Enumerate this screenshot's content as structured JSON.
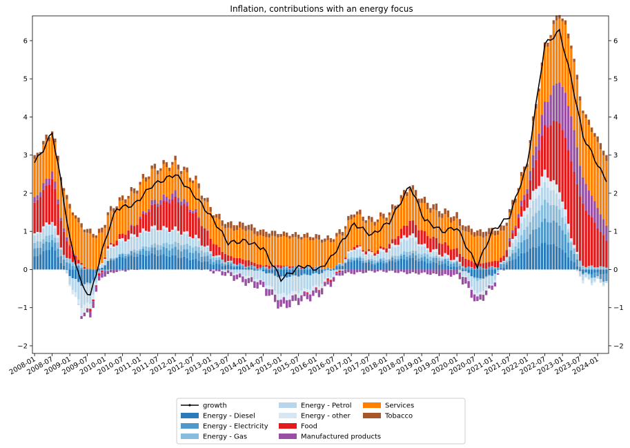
{
  "chart_data": {
    "type": "bar",
    "title": "Inflation, contributions with an energy focus",
    "xlabel": "",
    "ylabel": "",
    "ylim": [
      -2.2,
      6.65
    ],
    "yticks": [
      -2,
      -1,
      0,
      1,
      2,
      3,
      4,
      5,
      6
    ],
    "x_start": "2008-01",
    "x_end": "2024-04",
    "xticks": [
      "2008-01",
      "2008-07",
      "2009-01",
      "2009-07",
      "2010-01",
      "2010-07",
      "2011-01",
      "2011-07",
      "2012-01",
      "2012-07",
      "2013-01",
      "2013-07",
      "2014-01",
      "2014-07",
      "2015-01",
      "2015-07",
      "2016-01",
      "2016-07",
      "2017-01",
      "2017-07",
      "2018-01",
      "2018-07",
      "2019-01",
      "2019-07",
      "2020-01",
      "2020-07",
      "2021-01",
      "2021-07",
      "2022-01",
      "2022-07",
      "2023-01",
      "2023-07",
      "2024-01"
    ],
    "colors": {
      "Energy - Diesel": "#2b7bba",
      "Energy - Electricity": "#4f98c9",
      "Energy - Gas": "#87bcdc",
      "Energy - Petrol": "#b8d6ea",
      "Energy - other": "#d7e6f3",
      "Food": "#e31a1c",
      "Manufactured products": "#984ea3",
      "Services": "#ff7f00",
      "Tobacco": "#a65628",
      "growth": "#000000"
    },
    "legend": {
      "placement": "bottom-center",
      "entries": [
        "growth",
        "Energy - Diesel",
        "Energy - Electricity",
        "Energy - Gas",
        "Energy - Petrol",
        "Energy - other",
        "Food",
        "Manufactured products",
        "Services",
        "Tobacco"
      ]
    },
    "series_order": [
      "Energy - Diesel",
      "Energy - Electricity",
      "Energy - Gas",
      "Energy - Petrol",
      "Energy - other",
      "Food",
      "Manufactured products",
      "Services",
      "Tobacco"
    ],
    "keypoints": [
      {
        "t": 0,
        "Energy - Diesel": 0.35,
        "Energy - Electricity": 0.2,
        "Energy - Gas": 0.15,
        "Energy - Petrol": 0.2,
        "Energy - other": 0.05,
        "Food": 0.8,
        "Manufactured products": 0.15,
        "Services": 1.0,
        "Tobacco": 0.1,
        "growth": 2.8
      },
      {
        "t": 3,
        "Energy - Diesel": 0.45,
        "Energy - Electricity": 0.2,
        "Energy - Gas": 0.15,
        "Energy - Petrol": 0.25,
        "Energy - other": 0.05,
        "Food": 0.95,
        "Manufactured products": 0.15,
        "Services": 1.0,
        "Tobacco": 0.1,
        "growth": 3.15
      },
      {
        "t": 6,
        "Energy - Diesel": 0.6,
        "Energy - Electricity": 0.2,
        "Energy - Gas": 0.15,
        "Energy - Petrol": 0.3,
        "Energy - other": 0.05,
        "Food": 1.1,
        "Manufactured products": 0.2,
        "Services": 1.0,
        "Tobacco": 0.1,
        "growth": 3.6
      },
      {
        "t": 9,
        "Energy - Diesel": 0.2,
        "Energy - Electricity": 0.2,
        "Energy - Gas": 0.15,
        "Energy - Petrol": 0.05,
        "Energy - other": 0.05,
        "Food": 0.7,
        "Manufactured products": 0.1,
        "Services": 1.0,
        "Tobacco": 0.1,
        "growth": 2.3
      },
      {
        "t": 12,
        "Energy - Diesel": -0.15,
        "Energy - Electricity": 0.15,
        "Energy - Gas": 0.1,
        "Energy - Petrol": -0.2,
        "Energy - other": -0.05,
        "Food": 0.35,
        "Manufactured products": 0.05,
        "Services": 0.95,
        "Tobacco": 0.1,
        "growth": 0.8
      },
      {
        "t": 16,
        "Energy - Diesel": -0.4,
        "Energy - Electricity": 0.05,
        "Energy - Gas": 0.05,
        "Energy - Petrol": -0.55,
        "Energy - other": -0.2,
        "Food": 0.05,
        "Manufactured products": -0.05,
        "Services": 0.95,
        "Tobacco": 0.1,
        "growth": -0.4
      },
      {
        "t": 19,
        "Energy - Diesel": -0.35,
        "Energy - Electricity": 0.0,
        "Energy - Gas": -0.05,
        "Energy - Petrol": -0.5,
        "Energy - other": -0.15,
        "Food": -0.05,
        "Manufactured products": -0.15,
        "Services": 0.9,
        "Tobacco": 0.1,
        "growth": -0.7
      },
      {
        "t": 22,
        "Energy - Diesel": 0.0,
        "Energy - Electricity": -0.05,
        "Energy - Gas": -0.05,
        "Energy - Petrol": 0.05,
        "Energy - other": 0.0,
        "Food": -0.05,
        "Manufactured products": -0.15,
        "Services": 0.8,
        "Tobacco": 0.1,
        "growth": 0.2
      },
      {
        "t": 25,
        "Energy - Diesel": 0.2,
        "Energy - Electricity": 0.0,
        "Energy - Gas": 0.0,
        "Energy - Petrol": 0.25,
        "Energy - other": 0.05,
        "Food": 0.05,
        "Manufactured products": -0.1,
        "Services": 0.8,
        "Tobacco": 0.1,
        "growth": 1.0
      },
      {
        "t": 28,
        "Energy - Diesel": 0.3,
        "Energy - Electricity": 0.05,
        "Energy - Gas": 0.0,
        "Energy - Petrol": 0.3,
        "Energy - other": 0.05,
        "Food": 0.1,
        "Manufactured products": -0.05,
        "Services": 0.85,
        "Tobacco": 0.1,
        "growth": 1.6
      },
      {
        "t": 34,
        "Energy - Diesel": 0.35,
        "Energy - Electricity": 0.1,
        "Energy - Gas": 0.05,
        "Energy - Petrol": 0.35,
        "Energy - other": 0.05,
        "Food": 0.25,
        "Manufactured products": 0.0,
        "Services": 0.85,
        "Tobacco": 0.1,
        "growth": 1.7
      },
      {
        "t": 40,
        "Energy - Diesel": 0.4,
        "Energy - Electricity": 0.15,
        "Energy - Gas": 0.1,
        "Energy - Petrol": 0.4,
        "Energy - other": 0.05,
        "Food": 0.55,
        "Manufactured products": 0.1,
        "Services": 0.8,
        "Tobacco": 0.1,
        "growth": 2.2
      },
      {
        "t": 48,
        "Energy - Diesel": 0.35,
        "Energy - Electricity": 0.2,
        "Energy - Gas": 0.15,
        "Energy - Petrol": 0.3,
        "Energy - other": 0.05,
        "Food": 0.8,
        "Manufactured products": 0.15,
        "Services": 0.75,
        "Tobacco": 0.1,
        "growth": 2.5
      },
      {
        "t": 55,
        "Energy - Diesel": 0.25,
        "Energy - Electricity": 0.2,
        "Energy - Gas": 0.15,
        "Energy - Petrol": 0.2,
        "Energy - other": 0.05,
        "Food": 0.6,
        "Manufactured products": 0.05,
        "Services": 0.75,
        "Tobacco": 0.1,
        "growth": 1.9
      },
      {
        "t": 61,
        "Energy - Diesel": 0.15,
        "Energy - Electricity": 0.1,
        "Energy - Gas": 0.1,
        "Energy - Petrol": 0.05,
        "Energy - other": 0.0,
        "Food": 0.3,
        "Manufactured products": -0.05,
        "Services": 0.7,
        "Tobacco": 0.1,
        "growth": 1.3
      },
      {
        "t": 66,
        "Energy - Diesel": 0.1,
        "Energy - Electricity": 0.05,
        "Energy - Gas": 0.05,
        "Energy - Petrol": -0.05,
        "Energy - other": 0.0,
        "Food": 0.15,
        "Manufactured products": -0.1,
        "Services": 0.7,
        "Tobacco": 0.15,
        "growth": 0.7
      },
      {
        "t": 72,
        "Energy - Diesel": 0.05,
        "Energy - Electricity": 0.05,
        "Energy - Gas": 0.0,
        "Energy - Petrol": -0.15,
        "Energy - other": -0.05,
        "Food": 0.15,
        "Manufactured products": -0.15,
        "Services": 0.8,
        "Tobacco": 0.15,
        "growth": 0.75
      },
      {
        "t": 78,
        "Energy - Diesel": -0.05,
        "Energy - Electricity": 0.05,
        "Energy - Gas": 0.0,
        "Energy - Petrol": -0.25,
        "Energy - other": -0.05,
        "Food": 0.05,
        "Manufactured products": -0.15,
        "Services": 0.75,
        "Tobacco": 0.15,
        "growth": 0.55
      },
      {
        "t": 84,
        "Energy - Diesel": -0.2,
        "Energy - Electricity": 0.05,
        "Energy - Gas": 0.0,
        "Energy - Petrol": -0.45,
        "Energy - other": -0.15,
        "Food": 0.05,
        "Manufactured products": -0.2,
        "Services": 0.75,
        "Tobacco": 0.1,
        "growth": -0.25
      },
      {
        "t": 91,
        "Energy - Diesel": -0.15,
        "Energy - Electricity": 0.05,
        "Energy - Gas": 0.0,
        "Energy - Petrol": -0.4,
        "Energy - other": -0.1,
        "Food": 0.0,
        "Manufactured products": -0.15,
        "Services": 0.75,
        "Tobacco": 0.1,
        "growth": 0.1
      },
      {
        "t": 97,
        "Energy - Diesel": -0.1,
        "Energy - Electricity": 0.05,
        "Energy - Gas": 0.0,
        "Energy - Petrol": -0.3,
        "Energy - other": -0.1,
        "Food": 0.0,
        "Manufactured products": -0.15,
        "Services": 0.7,
        "Tobacco": 0.1,
        "growth": 0.0
      },
      {
        "t": 101,
        "Energy - Diesel": 0.0,
        "Energy - Electricity": 0.0,
        "Energy - Gas": 0.0,
        "Energy - Petrol": -0.15,
        "Energy - other": -0.05,
        "Food": -0.05,
        "Manufactured products": -0.1,
        "Services": 0.7,
        "Tobacco": 0.1,
        "growth": 0.3
      },
      {
        "t": 109,
        "Energy - Diesel": 0.25,
        "Energy - Electricity": 0.05,
        "Energy - Gas": 0.05,
        "Energy - Petrol": 0.2,
        "Energy - other": 0.05,
        "Food": 0.05,
        "Manufactured products": -0.1,
        "Services": 0.8,
        "Tobacco": 0.1,
        "growth": 1.2
      },
      {
        "t": 115,
        "Energy - Diesel": 0.15,
        "Energy - Electricity": 0.05,
        "Energy - Gas": 0.05,
        "Energy - Petrol": 0.1,
        "Energy - other": 0.05,
        "Food": 0.05,
        "Manufactured products": -0.05,
        "Services": 0.75,
        "Tobacco": 0.1,
        "growth": 0.9
      },
      {
        "t": 121,
        "Energy - Diesel": 0.2,
        "Energy - Electricity": 0.05,
        "Energy - Gas": 0.05,
        "Energy - Petrol": 0.2,
        "Energy - other": 0.05,
        "Food": 0.1,
        "Manufactured products": -0.05,
        "Services": 0.75,
        "Tobacco": 0.1,
        "growth": 1.25
      },
      {
        "t": 128,
        "Energy - Diesel": 0.3,
        "Energy - Electricity": 0.1,
        "Energy - Gas": 0.1,
        "Energy - Petrol": 0.35,
        "Energy - other": 0.1,
        "Food": 0.35,
        "Manufactured products": -0.1,
        "Services": 0.8,
        "Tobacco": 0.1,
        "growth": 2.2
      },
      {
        "t": 133,
        "Energy - Diesel": 0.2,
        "Energy - Electricity": 0.1,
        "Energy - Gas": 0.1,
        "Energy - Petrol": 0.15,
        "Energy - other": 0.05,
        "Food": 0.35,
        "Manufactured products": -0.1,
        "Services": 0.7,
        "Tobacco": 0.15,
        "growth": 1.3
      },
      {
        "t": 139,
        "Energy - Diesel": 0.15,
        "Energy - Electricity": 0.1,
        "Energy - Gas": 0.05,
        "Energy - Petrol": 0.05,
        "Energy - other": 0.05,
        "Food": 0.3,
        "Manufactured products": -0.15,
        "Services": 0.7,
        "Tobacco": 0.15,
        "growth": 1.0
      },
      {
        "t": 144,
        "Energy - Diesel": 0.05,
        "Energy - Electricity": 0.1,
        "Energy - Gas": 0.05,
        "Energy - Petrol": 0.0,
        "Energy - other": 0.05,
        "Food": 0.25,
        "Manufactured products": -0.15,
        "Services": 0.75,
        "Tobacco": 0.15,
        "growth": 1.1
      },
      {
        "t": 148,
        "Energy - Diesel": -0.1,
        "Energy - Electricity": 0.05,
        "Energy - Gas": 0.0,
        "Energy - Petrol": -0.2,
        "Energy - other": -0.05,
        "Food": 0.2,
        "Manufactured products": -0.2,
        "Services": 0.7,
        "Tobacco": 0.15,
        "growth": 0.5
      },
      {
        "t": 151,
        "Energy - Diesel": -0.25,
        "Energy - Electricity": 0.05,
        "Energy - Gas": -0.05,
        "Energy - Petrol": -0.35,
        "Energy - other": -0.1,
        "Food": 0.1,
        "Manufactured products": -0.15,
        "Services": 0.7,
        "Tobacco": 0.15,
        "growth": 0.1
      },
      {
        "t": 156,
        "Energy - Diesel": -0.15,
        "Energy - Electricity": 0.05,
        "Energy - Gas": 0.0,
        "Energy - Petrol": -0.2,
        "Energy - other": -0.05,
        "Food": 0.15,
        "Manufactured products": -0.1,
        "Services": 0.7,
        "Tobacco": 0.15,
        "growth": 1.0
      },
      {
        "t": 162,
        "Energy - Diesel": 0.2,
        "Energy - Electricity": 0.1,
        "Energy - Gas": 0.05,
        "Energy - Petrol": 0.15,
        "Energy - other": 0.05,
        "Food": 0.15,
        "Manufactured products": 0.05,
        "Services": 0.65,
        "Tobacco": 0.1,
        "growth": 1.4
      },
      {
        "t": 168,
        "Energy - Diesel": 0.5,
        "Energy - Electricity": 0.35,
        "Energy - Gas": 0.3,
        "Energy - Petrol": 0.35,
        "Energy - other": 0.2,
        "Food": 0.35,
        "Manufactured products": 0.15,
        "Services": 0.6,
        "Tobacco": 0.1,
        "growth": 2.75
      },
      {
        "t": 174,
        "Energy - Diesel": 0.7,
        "Energy - Electricity": 0.6,
        "Energy - Gas": 0.5,
        "Energy - Petrol": 0.45,
        "Energy - other": 0.3,
        "Food": 1.2,
        "Manufactured products": 0.6,
        "Services": 1.4,
        "Tobacco": 0.1,
        "growth": 5.9
      },
      {
        "t": 179,
        "Energy - Diesel": 0.6,
        "Energy - Electricity": 0.6,
        "Energy - Gas": 0.4,
        "Energy - Petrol": 0.3,
        "Energy - other": 0.2,
        "Food": 1.8,
        "Manufactured products": 1.1,
        "Services": 1.7,
        "Tobacco": 0.1,
        "growth": 6.25
      },
      {
        "t": 183,
        "Energy - Diesel": 0.25,
        "Energy - Electricity": 0.3,
        "Energy - Gas": 0.2,
        "Energy - Petrol": 0.05,
        "Energy - other": 0.1,
        "Food": 2.0,
        "Manufactured products": 1.2,
        "Services": 1.8,
        "Tobacco": 0.1,
        "growth": 5.0
      },
      {
        "t": 187,
        "Energy - Diesel": -0.1,
        "Energy - Electricity": 0.0,
        "Energy - Gas": 0.1,
        "Energy - Petrol": -0.15,
        "Energy - other": -0.05,
        "Food": 1.6,
        "Manufactured products": 0.7,
        "Services": 1.7,
        "Tobacco": 0.1,
        "growth": 3.5
      },
      {
        "t": 195,
        "Energy - Diesel": -0.1,
        "Energy - Electricity": -0.2,
        "Energy - Gas": 0.05,
        "Energy - Petrol": -0.05,
        "Energy - other": 0.0,
        "Food": 0.7,
        "Manufactured products": 0.4,
        "Services": 1.7,
        "Tobacco": 0.15,
        "growth": 2.3
      }
    ]
  }
}
